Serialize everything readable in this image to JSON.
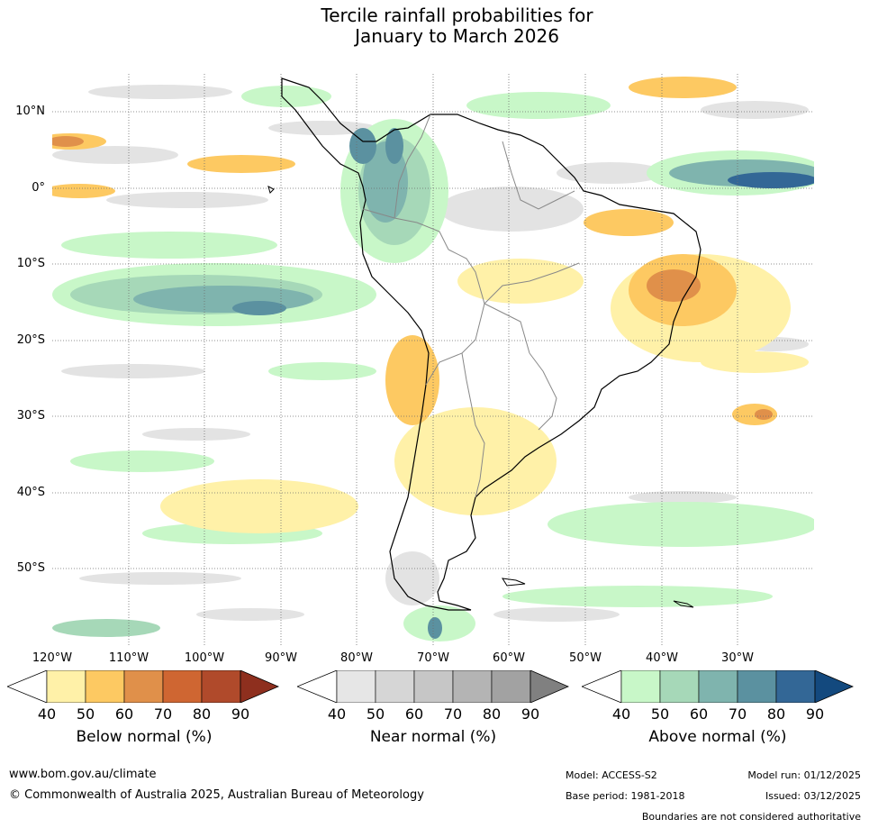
{
  "title": {
    "line1": "Tercile rainfall probabilities for",
    "line2": "January to March 2026"
  },
  "map": {
    "lat_labels": [
      "10°N",
      "0°",
      "10°S",
      "20°S",
      "30°S",
      "40°S",
      "50°S"
    ],
    "lon_labels": [
      "120°W",
      "110°W",
      "100°W",
      "90°W",
      "80°W",
      "70°W",
      "60°W",
      "50°W",
      "40°W",
      "30°W"
    ]
  },
  "colorbars": [
    {
      "label": "Below normal (%)",
      "ticks": [
        "40",
        "50",
        "60",
        "70",
        "80",
        "90"
      ],
      "colors": [
        "#fff1a8",
        "#fdc962",
        "#e0904a",
        "#cf6632",
        "#b04a2b",
        "#8e2f1e"
      ]
    },
    {
      "label": "Near normal (%)",
      "ticks": [
        "40",
        "50",
        "60",
        "70",
        "80",
        "90"
      ],
      "colors": [
        "#e6e6e6",
        "#d6d6d6",
        "#c6c6c6",
        "#b4b4b4",
        "#a2a2a2",
        "#808080"
      ]
    },
    {
      "label": "Above normal (%)",
      "ticks": [
        "40",
        "50",
        "60",
        "70",
        "80",
        "90"
      ],
      "colors": [
        "#c8f7c8",
        "#a6d8b8",
        "#7fb4ae",
        "#5b91a0",
        "#336796",
        "#13497e"
      ]
    }
  ],
  "footer": {
    "url": "www.bom.gov.au/climate",
    "copyright": "© Commonwealth of Australia 2025, Australian Bureau of Meteorology",
    "model": "Model: ACCESS-S2",
    "base_period": "Base period: 1981-2018",
    "model_run": "Model run: 01/12/2025",
    "issued": "Issued: 03/12/2025",
    "disclaimer": "Boundaries are not considered authoritative"
  }
}
